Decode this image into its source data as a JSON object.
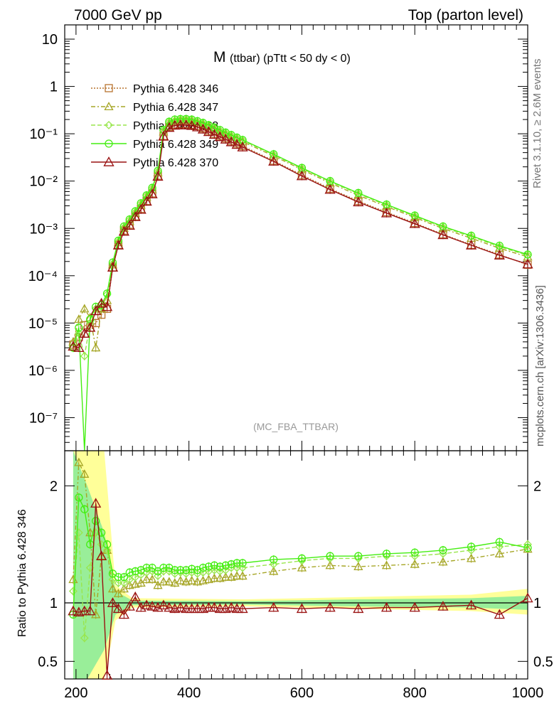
{
  "header": {
    "left": "7000 GeV pp",
    "right": "Top (parton level)"
  },
  "side_labels": {
    "rivet": "Rivet 3.1.10, ≥ 2.6M events",
    "mcplots": "mcplots.cern.ch [arXiv:1306.3436]"
  },
  "main_panel": {
    "title_main": "M",
    "title_sub": "(ttbar) (pTtt < 50 dy < 0)",
    "watermark": "(MC_FBA_TTBAR)"
  },
  "ratio_panel": {
    "ylabel": "Ratio to Pythia 6.428 346"
  },
  "legend": [
    {
      "label": "Pythia 6.428 346",
      "color": "#b8732f",
      "marker": "square",
      "dash": "2,2"
    },
    {
      "label": "Pythia 6.428 347",
      "color": "#a6a626",
      "marker": "triangle",
      "dash": "6,3,2,3"
    },
    {
      "label": "Pythia 6.428 348",
      "color": "#99e64d",
      "marker": "diamond",
      "dash": "6,3"
    },
    {
      "label": "Pythia 6.428 349",
      "color": "#44ee11",
      "marker": "circle",
      "dash": ""
    },
    {
      "label": "Pythia 6.428 370",
      "color": "#991111",
      "marker": "triangle-open",
      "dash": ""
    }
  ],
  "chart_data": [
    {
      "type": "line",
      "scale": "log-y",
      "xlim": [
        180,
        1000
      ],
      "ylim": [
        2e-08,
        20
      ],
      "x_ticks": [
        200,
        400,
        600,
        800,
        1000
      ],
      "y_tick_labels": [
        "10",
        "1",
        "10⁻¹",
        "10⁻²",
        "10⁻³",
        "10⁻⁴",
        "10⁻⁵",
        "10⁻⁶",
        "10⁻⁷"
      ],
      "x": [
        195,
        205,
        215,
        225,
        235,
        245,
        255,
        265,
        275,
        285,
        295,
        305,
        315,
        325,
        335,
        345,
        355,
        365,
        375,
        385,
        395,
        405,
        415,
        425,
        435,
        445,
        455,
        465,
        475,
        485,
        495,
        550,
        600,
        650,
        700,
        750,
        800,
        850,
        900,
        950,
        1000
      ],
      "series": [
        {
          "name": "Pythia 6.428 346",
          "values": [
            3.5e-06,
            5e-06,
            9e-06,
            8e-06,
            1e-05,
            1.5e-05,
            2e-05,
            0.00015,
            0.00045,
            0.0009,
            0.0012,
            0.0018,
            0.0026,
            0.0038,
            0.0055,
            0.013,
            0.09,
            0.14,
            0.155,
            0.16,
            0.16,
            0.155,
            0.145,
            0.13,
            0.115,
            0.1,
            0.09,
            0.08,
            0.07,
            0.062,
            0.055,
            0.027,
            0.0135,
            0.0069,
            0.0038,
            0.0022,
            0.0013,
            0.00075,
            0.00045,
            0.00028,
            0.00017
          ]
        },
        {
          "name": "Pythia 6.428 347",
          "values": [
            4e-06,
            1.2e-05,
            2e-05,
            1.3e-05,
            3e-06,
            2e-05,
            3e-05,
            0.00017,
            0.0005,
            0.001,
            0.0014,
            0.0021,
            0.0031,
            0.0046,
            0.0066,
            0.015,
            0.11,
            0.165,
            0.18,
            0.19,
            0.19,
            0.185,
            0.17,
            0.155,
            0.14,
            0.125,
            0.11,
            0.098,
            0.086,
            0.076,
            0.068,
            0.034,
            0.0175,
            0.0091,
            0.005,
            0.0029,
            0.0017,
            0.00099,
            0.00062,
            0.00038,
            0.00025
          ]
        },
        {
          "name": "Pythia 6.428 348",
          "values": [
            3e-06,
            6e-06,
            2e-06,
            1e-05,
            2e-05,
            2.2e-05,
            4e-05,
            0.00018,
            0.00053,
            0.00105,
            0.0015,
            0.0022,
            0.0033,
            0.0049,
            0.007,
            0.016,
            0.115,
            0.175,
            0.19,
            0.2,
            0.2,
            0.195,
            0.18,
            0.165,
            0.148,
            0.132,
            0.116,
            0.103,
            0.091,
            0.081,
            0.072,
            0.036,
            0.0185,
            0.0097,
            0.0054,
            0.0031,
            0.0018,
            0.00106,
            0.00067,
            0.00041,
            0.00027
          ]
        },
        {
          "name": "Pythia 6.428 349",
          "values": [
            3e-06,
            8e-06,
            1e-08,
            1.2e-05,
            2.2e-05,
            2.4e-05,
            4.2e-05,
            0.00019,
            0.00055,
            0.0011,
            0.00155,
            0.0023,
            0.0034,
            0.005,
            0.0072,
            0.0165,
            0.12,
            0.18,
            0.2,
            0.205,
            0.205,
            0.2,
            0.185,
            0.17,
            0.152,
            0.136,
            0.12,
            0.106,
            0.094,
            0.083,
            0.074,
            0.037,
            0.019,
            0.01,
            0.0056,
            0.0032,
            0.00187,
            0.0011,
            0.0007,
            0.00043,
            0.00028
          ]
        },
        {
          "name": "Pythia 6.428 370",
          "values": [
            3.2e-06,
            3e-06,
            6e-06,
            8e-06,
            1.8e-05,
            2.6e-05,
            2.2e-05,
            0.00015,
            0.00044,
            0.00086,
            0.00115,
            0.00175,
            0.0025,
            0.0037,
            0.0053,
            0.0125,
            0.088,
            0.135,
            0.15,
            0.153,
            0.152,
            0.148,
            0.138,
            0.124,
            0.11,
            0.096,
            0.086,
            0.076,
            0.067,
            0.059,
            0.052,
            0.026,
            0.0128,
            0.0066,
            0.0036,
            0.0021,
            0.00125,
            0.00073,
            0.00044,
            0.00027,
            0.000175
          ]
        }
      ]
    },
    {
      "type": "line",
      "scale": "linear",
      "xlim": [
        180,
        1000
      ],
      "ylim": [
        0.35,
        2.3
      ],
      "x_ticks": [
        200,
        400,
        600,
        800,
        1000
      ],
      "y_ticks": [
        0.5,
        1,
        2
      ],
      "reference_line": 1,
      "bands": [
        {
          "color": "#ffff99",
          "x": [
            195,
            220,
            250,
            270,
            300,
            500,
            700,
            900,
            1000
          ],
          "lower": [
            0.35,
            0.35,
            0.35,
            0.85,
            0.96,
            0.97,
            0.95,
            0.93,
            0.9
          ],
          "upper": [
            2.3,
            2.3,
            2.3,
            1.15,
            1.04,
            1.03,
            1.05,
            1.07,
            1.12
          ]
        },
        {
          "color": "#99ee99",
          "x": [
            195,
            220,
            250,
            270,
            300,
            500,
            700,
            900,
            1000
          ],
          "lower": [
            0.35,
            0.35,
            0.6,
            0.9,
            0.98,
            0.985,
            0.97,
            0.96,
            0.94
          ],
          "upper": [
            2.3,
            2.0,
            1.6,
            1.1,
            1.02,
            1.015,
            1.03,
            1.04,
            1.06
          ]
        }
      ],
      "x": [
        195,
        205,
        215,
        225,
        235,
        245,
        255,
        265,
        275,
        285,
        295,
        305,
        315,
        325,
        335,
        345,
        355,
        365,
        375,
        385,
        395,
        405,
        415,
        425,
        435,
        445,
        455,
        465,
        475,
        485,
        495,
        550,
        600,
        650,
        700,
        750,
        800,
        850,
        900,
        950,
        1000
      ],
      "series": [
        {
          "name": "Pythia 6.428 347",
          "values": [
            1.2,
            2.2,
            2.1,
            1.6,
            0.9,
            1.4,
            1.45,
            1.12,
            1.08,
            1.12,
            1.15,
            1.16,
            1.17,
            1.2,
            1.2,
            1.15,
            1.18,
            1.18,
            1.17,
            1.19,
            1.18,
            1.19,
            1.18,
            1.19,
            1.2,
            1.21,
            1.21,
            1.22,
            1.22,
            1.23,
            1.23,
            1.27,
            1.3,
            1.32,
            1.31,
            1.32,
            1.33,
            1.35,
            1.38,
            1.42,
            1.46
          ]
        },
        {
          "name": "Pythia 6.428 348",
          "values": [
            1.1,
            1.6,
            0.7,
            1.3,
            1.6,
            1.5,
            1.45,
            1.2,
            1.17,
            1.17,
            1.2,
            1.22,
            1.24,
            1.26,
            1.27,
            1.23,
            1.27,
            1.27,
            1.25,
            1.26,
            1.25,
            1.26,
            1.25,
            1.26,
            1.27,
            1.28,
            1.27,
            1.28,
            1.3,
            1.3,
            1.3,
            1.33,
            1.36,
            1.38,
            1.38,
            1.4,
            1.4,
            1.42,
            1.45,
            1.48,
            1.5
          ]
        },
        {
          "name": "Pythia 6.428 349",
          "values": [
            0.9,
            1.9,
            1.8,
            1.5,
            1.7,
            1.6,
            1.5,
            1.25,
            1.22,
            1.22,
            1.26,
            1.27,
            1.28,
            1.3,
            1.3,
            1.27,
            1.3,
            1.3,
            1.28,
            1.28,
            1.28,
            1.29,
            1.28,
            1.3,
            1.31,
            1.32,
            1.31,
            1.32,
            1.33,
            1.34,
            1.34,
            1.37,
            1.38,
            1.4,
            1.4,
            1.42,
            1.43,
            1.45,
            1.48,
            1.52,
            1.47
          ]
        },
        {
          "name": "Pythia 6.428 370",
          "values": [
            0.93,
            0.92,
            0.93,
            0.93,
            1.85,
            1.4,
            0.38,
            1.0,
            0.95,
            0.9,
            0.97,
            1.05,
            0.96,
            0.98,
            0.97,
            0.96,
            0.98,
            0.96,
            0.95,
            0.96,
            0.95,
            0.95,
            0.95,
            0.95,
            0.96,
            0.96,
            0.95,
            0.95,
            0.96,
            0.95,
            0.95,
            0.96,
            0.95,
            0.96,
            0.95,
            0.96,
            0.96,
            0.97,
            0.98,
            0.9,
            1.04
          ]
        }
      ]
    }
  ]
}
